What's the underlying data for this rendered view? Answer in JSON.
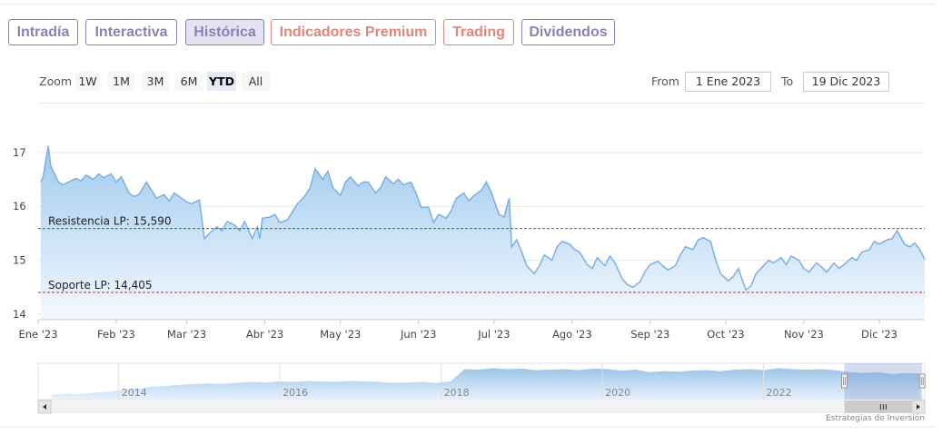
{
  "tabs": [
    {
      "label": "Intradía",
      "color": "purple",
      "active": false
    },
    {
      "label": "Interactiva",
      "color": "purple",
      "active": false
    },
    {
      "label": "Histórica",
      "color": "purple",
      "active": true
    },
    {
      "label": "Indicadores Premium",
      "color": "salmon",
      "active": false
    },
    {
      "label": "Trading",
      "color": "salmon",
      "active": false
    },
    {
      "label": "Dividendos",
      "color": "purple",
      "active": false
    }
  ],
  "range_selector": {
    "zoom_label": "Zoom",
    "buttons": [
      "1W",
      "1M",
      "3M",
      "6M",
      "YTD",
      "All"
    ],
    "selected": "YTD",
    "from_label": "From",
    "from_value": "1 Ene 2023",
    "to_label": "To",
    "to_value": "19 Dic 2023"
  },
  "colors": {
    "line": "#7cb0e0",
    "fill_top": "#8fc0ec",
    "fill_bottom": "#f2f8fe",
    "resistance": "#2e7d32",
    "support": "#c62828",
    "tab_purple": "#8a82b6",
    "tab_salmon": "#e2857b"
  },
  "chart_data": {
    "type": "area",
    "y_ticks": [
      14,
      15,
      16,
      17
    ],
    "ylim": [
      13.9,
      17.3
    ],
    "x_labels": [
      "Ene '23",
      "Feb '23",
      "Mar '23",
      "Abr '23",
      "May '23",
      "Jun '23",
      "Jul '23",
      "Ago '23",
      "Sep '23",
      "Oct '23",
      "Nov '23",
      "Dic '23"
    ],
    "x_range": [
      "2023-01-01",
      "2023-12-19"
    ],
    "grid": true,
    "annotations": [
      {
        "label": "Resistencia LP: 15,590",
        "value": 15.59,
        "kind": "resistance"
      },
      {
        "label": "Soporte LP: 14,405",
        "value": 14.405,
        "kind": "support"
      }
    ],
    "series": [
      {
        "points": [
          [
            "2023-01-02",
            16.45
          ],
          [
            "2023-01-03",
            16.55
          ],
          [
            "2023-01-05",
            17.12
          ],
          [
            "2023-01-06",
            16.75
          ],
          [
            "2023-01-09",
            16.45
          ],
          [
            "2023-01-11",
            16.4
          ],
          [
            "2023-01-13",
            16.45
          ],
          [
            "2023-01-16",
            16.52
          ],
          [
            "2023-01-18",
            16.47
          ],
          [
            "2023-01-20",
            16.58
          ],
          [
            "2023-01-23",
            16.5
          ],
          [
            "2023-01-25",
            16.6
          ],
          [
            "2023-01-27",
            16.53
          ],
          [
            "2023-01-30",
            16.6
          ],
          [
            "2023-02-01",
            16.45
          ],
          [
            "2023-02-03",
            16.55
          ],
          [
            "2023-02-06",
            16.25
          ],
          [
            "2023-02-08",
            16.18
          ],
          [
            "2023-02-10",
            16.22
          ],
          [
            "2023-02-13",
            16.45
          ],
          [
            "2023-02-15",
            16.3
          ],
          [
            "2023-02-17",
            16.15
          ],
          [
            "2023-02-20",
            16.22
          ],
          [
            "2023-02-22",
            16.1
          ],
          [
            "2023-02-24",
            16.25
          ],
          [
            "2023-02-27",
            16.15
          ],
          [
            "2023-03-01",
            16.08
          ],
          [
            "2023-03-03",
            16.05
          ],
          [
            "2023-03-06",
            16.12
          ],
          [
            "2023-03-08",
            15.4
          ],
          [
            "2023-03-10",
            15.5
          ],
          [
            "2023-03-13",
            15.62
          ],
          [
            "2023-03-15",
            15.55
          ],
          [
            "2023-03-17",
            15.72
          ],
          [
            "2023-03-20",
            15.65
          ],
          [
            "2023-03-22",
            15.55
          ],
          [
            "2023-03-24",
            15.72
          ],
          [
            "2023-03-27",
            15.4
          ],
          [
            "2023-03-29",
            15.62
          ],
          [
            "2023-03-30",
            15.4
          ],
          [
            "2023-03-31",
            15.78
          ],
          [
            "2023-04-03",
            15.8
          ],
          [
            "2023-04-05",
            15.85
          ],
          [
            "2023-04-07",
            15.7
          ],
          [
            "2023-04-10",
            15.75
          ],
          [
            "2023-04-12",
            15.9
          ],
          [
            "2023-04-14",
            16.05
          ],
          [
            "2023-04-17",
            16.2
          ],
          [
            "2023-04-19",
            16.35
          ],
          [
            "2023-04-21",
            16.7
          ],
          [
            "2023-04-24",
            16.5
          ],
          [
            "2023-04-26",
            16.65
          ],
          [
            "2023-04-28",
            16.35
          ],
          [
            "2023-05-01",
            16.2
          ],
          [
            "2023-05-03",
            16.45
          ],
          [
            "2023-05-05",
            16.55
          ],
          [
            "2023-05-08",
            16.38
          ],
          [
            "2023-05-10",
            16.45
          ],
          [
            "2023-05-12",
            16.45
          ],
          [
            "2023-05-15",
            16.25
          ],
          [
            "2023-05-17",
            16.35
          ],
          [
            "2023-05-19",
            16.55
          ],
          [
            "2023-05-22",
            16.42
          ],
          [
            "2023-05-24",
            16.5
          ],
          [
            "2023-05-26",
            16.4
          ],
          [
            "2023-05-29",
            16.45
          ],
          [
            "2023-05-31",
            16.25
          ],
          [
            "2023-06-02",
            15.98
          ],
          [
            "2023-06-05",
            15.98
          ],
          [
            "2023-06-07",
            15.7
          ],
          [
            "2023-06-09",
            15.85
          ],
          [
            "2023-06-12",
            15.78
          ],
          [
            "2023-06-14",
            15.92
          ],
          [
            "2023-06-16",
            16.15
          ],
          [
            "2023-06-19",
            16.25
          ],
          [
            "2023-06-21",
            16.1
          ],
          [
            "2023-06-23",
            16.2
          ],
          [
            "2023-06-26",
            16.3
          ],
          [
            "2023-06-28",
            16.45
          ],
          [
            "2023-06-30",
            16.25
          ],
          [
            "2023-07-03",
            15.85
          ],
          [
            "2023-07-05",
            15.8
          ],
          [
            "2023-07-07",
            16.15
          ],
          [
            "2023-07-08",
            15.25
          ],
          [
            "2023-07-10",
            15.38
          ],
          [
            "2023-07-12",
            15.15
          ],
          [
            "2023-07-14",
            14.9
          ],
          [
            "2023-07-17",
            14.75
          ],
          [
            "2023-07-19",
            14.9
          ],
          [
            "2023-07-21",
            15.1
          ],
          [
            "2023-07-24",
            15.0
          ],
          [
            "2023-07-26",
            15.25
          ],
          [
            "2023-07-28",
            15.35
          ],
          [
            "2023-07-31",
            15.3
          ],
          [
            "2023-08-02",
            15.2
          ],
          [
            "2023-08-04",
            15.15
          ],
          [
            "2023-08-07",
            14.92
          ],
          [
            "2023-08-09",
            14.85
          ],
          [
            "2023-08-11",
            15.05
          ],
          [
            "2023-08-14",
            14.9
          ],
          [
            "2023-08-16",
            15.08
          ],
          [
            "2023-08-18",
            14.95
          ],
          [
            "2023-08-21",
            14.65
          ],
          [
            "2023-08-23",
            14.55
          ],
          [
            "2023-08-25",
            14.5
          ],
          [
            "2023-08-28",
            14.6
          ],
          [
            "2023-08-30",
            14.8
          ],
          [
            "2023-09-01",
            14.92
          ],
          [
            "2023-09-04",
            14.98
          ],
          [
            "2023-09-06",
            14.9
          ],
          [
            "2023-09-08",
            14.82
          ],
          [
            "2023-09-11",
            14.9
          ],
          [
            "2023-09-13",
            15.1
          ],
          [
            "2023-09-15",
            15.25
          ],
          [
            "2023-09-18",
            15.2
          ],
          [
            "2023-09-20",
            15.38
          ],
          [
            "2023-09-22",
            15.42
          ],
          [
            "2023-09-25",
            15.35
          ],
          [
            "2023-09-27",
            15.0
          ],
          [
            "2023-09-29",
            14.75
          ],
          [
            "2023-10-02",
            14.62
          ],
          [
            "2023-10-04",
            14.7
          ],
          [
            "2023-10-06",
            14.85
          ],
          [
            "2023-10-09",
            14.45
          ],
          [
            "2023-10-11",
            14.52
          ],
          [
            "2023-10-13",
            14.75
          ],
          [
            "2023-10-16",
            14.9
          ],
          [
            "2023-10-18",
            15.0
          ],
          [
            "2023-10-20",
            14.95
          ],
          [
            "2023-10-23",
            15.05
          ],
          [
            "2023-10-25",
            14.92
          ],
          [
            "2023-10-27",
            15.08
          ],
          [
            "2023-10-30",
            15.0
          ],
          [
            "2023-11-01",
            14.85
          ],
          [
            "2023-11-03",
            14.78
          ],
          [
            "2023-11-06",
            14.95
          ],
          [
            "2023-11-08",
            14.88
          ],
          [
            "2023-11-10",
            14.78
          ],
          [
            "2023-11-13",
            14.95
          ],
          [
            "2023-11-15",
            14.85
          ],
          [
            "2023-11-17",
            14.92
          ],
          [
            "2023-11-20",
            15.05
          ],
          [
            "2023-11-22",
            15.0
          ],
          [
            "2023-11-24",
            15.15
          ],
          [
            "2023-11-27",
            15.2
          ],
          [
            "2023-11-29",
            15.35
          ],
          [
            "2023-12-01",
            15.3
          ],
          [
            "2023-12-04",
            15.38
          ],
          [
            "2023-12-06",
            15.4
          ],
          [
            "2023-12-08",
            15.55
          ],
          [
            "2023-12-11",
            15.3
          ],
          [
            "2023-12-13",
            15.25
          ],
          [
            "2023-12-15",
            15.32
          ],
          [
            "2023-12-17",
            15.2
          ],
          [
            "2023-12-19",
            15.02
          ]
        ]
      }
    ]
  },
  "navigator": {
    "year_labels": [
      "2014",
      "2016",
      "2018",
      "2020",
      "2022"
    ],
    "start_year": 2013,
    "end_year": 2024,
    "selection": [
      "2023-01-01",
      "2023-12-19"
    ],
    "values": [
      14.0,
      14.1,
      14.05,
      14.2,
      14.3,
      14.5,
      14.6,
      14.8,
      14.9,
      15.0,
      15.1,
      15.15,
      15.1,
      15.2,
      15.3,
      15.25,
      15.35,
      15.3,
      15.4,
      15.35,
      15.3,
      15.4,
      15.35,
      15.3,
      15.2,
      15.25,
      15.3,
      15.2,
      15.35,
      16.6,
      16.55,
      16.7,
      16.6,
      16.65,
      16.5,
      16.55,
      16.6,
      16.5,
      16.65,
      16.6,
      16.45,
      16.55,
      16.3,
      16.4,
      16.35,
      16.45,
      16.5,
      16.4,
      16.55,
      16.6,
      16.5,
      16.7,
      16.6,
      16.55,
      16.6,
      16.5,
      16.3,
      16.2,
      16.3,
      16.1,
      16.2,
      16.15
    ]
  },
  "credit": "Estrategias de Inversión"
}
